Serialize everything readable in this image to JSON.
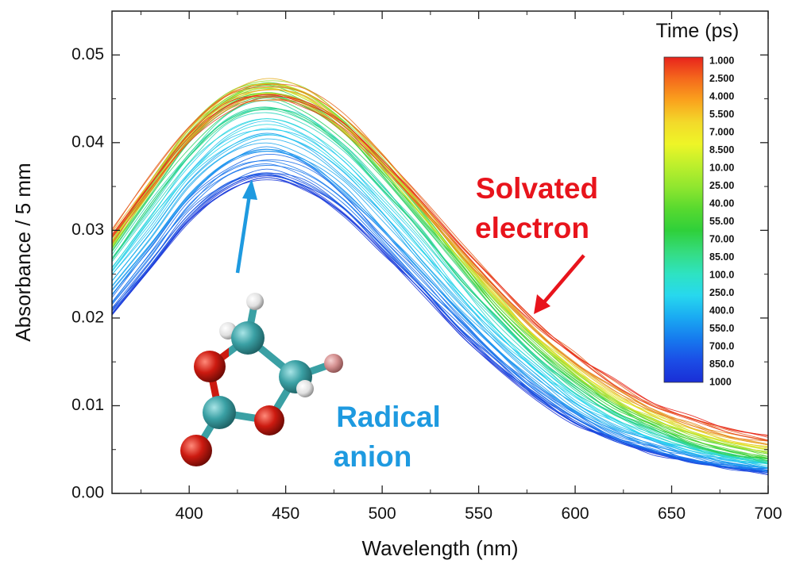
{
  "chart_data": {
    "type": "line",
    "xlabel": "Wavelength (nm)",
    "ylabel": "Absorbance / 5 mm",
    "xlim": [
      360,
      700
    ],
    "ylim": [
      0.0,
      0.055
    ],
    "x_ticks": [
      "400",
      "450",
      "500",
      "550",
      "600",
      "650",
      "700"
    ],
    "y_ticks": [
      "0.00",
      "0.01",
      "0.02",
      "0.03",
      "0.04",
      "0.05"
    ],
    "grid": false,
    "colorbar": {
      "title": "Time (ps)",
      "labels": [
        "1.000",
        "2.500",
        "4.000",
        "5.500",
        "7.000",
        "8.500",
        "10.00",
        "25.00",
        "40.00",
        "55.00",
        "70.00",
        "85.00",
        "100.0",
        "250.0",
        "400.0",
        "550.0",
        "700.0",
        "850.0",
        "1000"
      ],
      "colors": [
        "#e8231c",
        "#f56a1c",
        "#faa21d",
        "#f3d92a",
        "#eef527",
        "#bdef2c",
        "#8fe62f",
        "#57d92f",
        "#2fd03a",
        "#35dc80",
        "#2ee3c2",
        "#27d8ee",
        "#1aaaf2",
        "#167aee",
        "#1b4de6",
        "#1a2ed6"
      ]
    },
    "x": [
      360,
      380,
      400,
      420,
      440,
      460,
      480,
      500,
      520,
      540,
      560,
      580,
      600,
      620,
      640,
      660,
      680,
      700
    ],
    "series": [
      {
        "time_ps": 1,
        "color": "#e8231c",
        "values": [
          0.0295,
          0.0355,
          0.0408,
          0.0443,
          0.0455,
          0.0447,
          0.042,
          0.038,
          0.0335,
          0.0285,
          0.0238,
          0.0195,
          0.016,
          0.013,
          0.0105,
          0.0088,
          0.0075,
          0.0066
        ]
      },
      {
        "time_ps": 10,
        "color": "#e6e82a",
        "values": [
          0.029,
          0.0352,
          0.041,
          0.045,
          0.0465,
          0.0455,
          0.0425,
          0.038,
          0.0328,
          0.0275,
          0.0225,
          0.018,
          0.0143,
          0.0112,
          0.009,
          0.0072,
          0.006,
          0.0052
        ]
      },
      {
        "time_ps": 40,
        "color": "#2fd03a",
        "values": [
          0.0285,
          0.0348,
          0.0408,
          0.0448,
          0.0462,
          0.045,
          0.0418,
          0.037,
          0.0318,
          0.0264,
          0.0213,
          0.0168,
          0.013,
          0.01,
          0.0078,
          0.006,
          0.0048,
          0.004
        ]
      },
      {
        "time_ps": 100,
        "color": "#27d8ee",
        "values": [
          0.0255,
          0.0312,
          0.0368,
          0.0408,
          0.0422,
          0.041,
          0.0378,
          0.0333,
          0.0283,
          0.0232,
          0.0185,
          0.0144,
          0.011,
          0.0085,
          0.0066,
          0.0051,
          0.004,
          0.0034
        ]
      },
      {
        "time_ps": 400,
        "color": "#167aee",
        "values": [
          0.0222,
          0.0278,
          0.0335,
          0.0372,
          0.0385,
          0.0372,
          0.034,
          0.0295,
          0.0248,
          0.02,
          0.0158,
          0.012,
          0.009,
          0.0068,
          0.0052,
          0.004,
          0.0032,
          0.0027
        ]
      },
      {
        "time_ps": 1000,
        "color": "#1a2ed6",
        "values": [
          0.0205,
          0.0258,
          0.0312,
          0.0348,
          0.0362,
          0.035,
          0.032,
          0.0278,
          0.0232,
          0.0185,
          0.0143,
          0.0108,
          0.008,
          0.006,
          0.0046,
          0.0036,
          0.0029,
          0.0024
        ]
      }
    ],
    "annotations": [
      {
        "text_lines": [
          "Solvated",
          "electron"
        ],
        "color": "#e8141c",
        "arrow_color": "#e8141c"
      },
      {
        "text_lines": [
          "Radical",
          "anion"
        ],
        "color": "#1e9ae0",
        "arrow_color": "#1e9ae0"
      }
    ],
    "molecule_image": {
      "description_only": false,
      "atom_colors": {
        "carbon": "#3aa0a4",
        "oxygen": "#cc1a10",
        "hydrogen": "#e8e8e8",
        "halogen": "#d49090"
      }
    }
  }
}
